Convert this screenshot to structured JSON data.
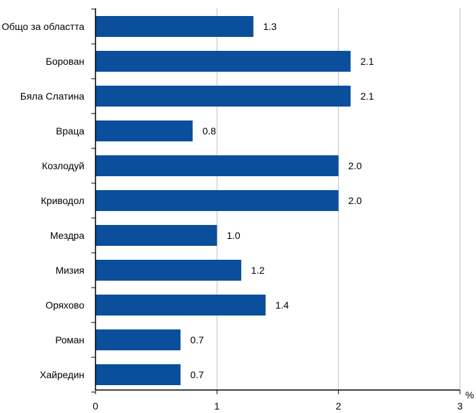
{
  "chart_data": {
    "type": "bar",
    "orientation": "horizontal",
    "categories": [
      "Общо за областта",
      "Борован",
      "Бяла Слатина",
      "Враца",
      "Козлодуй",
      "Криводол",
      "Мездра",
      "Мизия",
      "Оряхово",
      "Роман",
      "Хайредин"
    ],
    "values": [
      1.3,
      2.1,
      2.1,
      0.8,
      2.0,
      2.0,
      1.0,
      1.2,
      1.4,
      0.7,
      0.7
    ],
    "value_labels": [
      "1.3",
      "2.1",
      "2.1",
      "0.8",
      "2.0",
      "2.0",
      "1.0",
      "1.2",
      "1.4",
      "0.7",
      "0.7"
    ],
    "xlim": [
      0,
      3
    ],
    "x_ticks": [
      "0",
      "1",
      "2",
      "3"
    ],
    "unit": "%",
    "grid": "vertical",
    "bar_color": "#0B4F9C"
  }
}
